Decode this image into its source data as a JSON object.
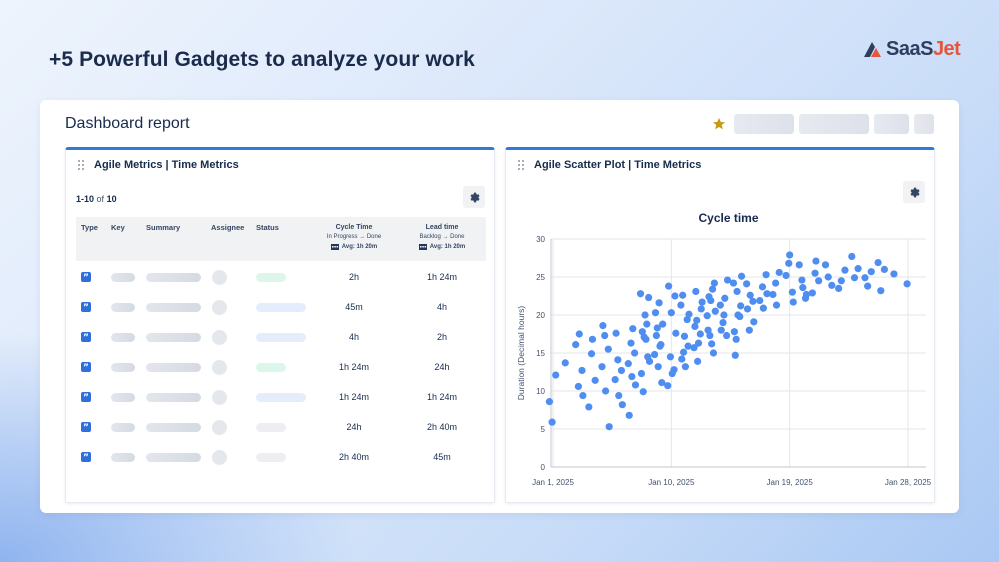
{
  "headline": "+5 Powerful Gadgets to analyze your work",
  "logo": {
    "part1": "SaaS",
    "part2": "Jet",
    "colors": {
      "dark": "#2d3e5f",
      "accent": "#e5563b"
    }
  },
  "dashboard": {
    "title": "Dashboard report"
  },
  "left_panel": {
    "title": "Agile Metrics | Time Metrics",
    "range": "1-10",
    "of_word": "of",
    "total": "10",
    "columns": {
      "type": "Type",
      "key": "Key",
      "summary": "Summary",
      "assignee": "Assignee",
      "status": "Status",
      "cycle": {
        "title": "Cycle Time",
        "sub": "In Progress → Done",
        "avg": "Avg: 1h 20m"
      },
      "lead": {
        "title": "Lead time",
        "sub": "Backlog → Done",
        "avg": "Avg: 1h 20m"
      }
    },
    "rows": [
      {
        "type_icon": "quote-icon",
        "status_color": "#dcf7ea",
        "cycle": "2h",
        "lead": "1h 24m"
      },
      {
        "type_icon": "quote-icon",
        "status_color": "#e3edfb",
        "cycle": "45m",
        "lead": "4h"
      },
      {
        "type_icon": "quote-icon",
        "status_color": "#e3edfb",
        "cycle": "4h",
        "lead": "2h"
      },
      {
        "type_icon": "quote-icon",
        "status_color": "#dcf7ea",
        "cycle": "1h 24m",
        "lead": "24h"
      },
      {
        "type_icon": "quote-icon",
        "status_color": "#e3edfb",
        "cycle": "1h 24m",
        "lead": "1h 24m"
      },
      {
        "type_icon": "quote-icon",
        "status_color": "#eceef2",
        "cycle": "24h",
        "lead": "2h 40m"
      },
      {
        "type_icon": "quote-icon",
        "status_color": "#eceef2",
        "cycle": "2h 40m",
        "lead": "45m"
      }
    ]
  },
  "right_panel": {
    "title": "Agile Scatter Plot | Time Metrics"
  },
  "chart_data": {
    "type": "scatter",
    "title": "Cycle time",
    "xlabel": "",
    "ylabel": "Duration (Decimal hours)",
    "x_ticks": [
      "Jan 1, 2025",
      "Jan 10, 2025",
      "Jan 19, 2025",
      "Jan 28, 2025"
    ],
    "x_range": [
      "2025-01-01",
      "2025-01-28"
    ],
    "y_ticks": [
      0,
      5,
      10,
      15,
      20,
      25,
      30
    ],
    "ylim": [
      0,
      30
    ],
    "grid": true,
    "point_color": "#4f8ef0",
    "points": [
      [
        "2025-01-01",
        5.9
      ],
      [
        "2025-01-01",
        12.1
      ],
      [
        "2025-01-01",
        8.6
      ],
      [
        "2025-01-02",
        13.7
      ],
      [
        "2025-01-03",
        10.6
      ],
      [
        "2025-01-03",
        12.7
      ],
      [
        "2025-01-03",
        16.1
      ],
      [
        "2025-01-03",
        17.5
      ],
      [
        "2025-01-03",
        9.4
      ],
      [
        "2025-01-04",
        14.9
      ],
      [
        "2025-01-04",
        11.4
      ],
      [
        "2025-01-04",
        7.9
      ],
      [
        "2025-01-04",
        16.8
      ],
      [
        "2025-01-05",
        17.3
      ],
      [
        "2025-01-05",
        15.5
      ],
      [
        "2025-01-05",
        13.2
      ],
      [
        "2025-01-05",
        10.0
      ],
      [
        "2025-01-05",
        5.3
      ],
      [
        "2025-01-05",
        18.6
      ],
      [
        "2025-01-06",
        14.1
      ],
      [
        "2025-01-06",
        12.7
      ],
      [
        "2025-01-06",
        11.5
      ],
      [
        "2025-01-06",
        9.4
      ],
      [
        "2025-01-06",
        8.2
      ],
      [
        "2025-01-06",
        17.6
      ],
      [
        "2025-01-07",
        16.3
      ],
      [
        "2025-01-07",
        15.0
      ],
      [
        "2025-01-07",
        13.6
      ],
      [
        "2025-01-07",
        11.9
      ],
      [
        "2025-01-07",
        10.8
      ],
      [
        "2025-01-07",
        6.8
      ],
      [
        "2025-01-07",
        18.2
      ],
      [
        "2025-01-08",
        17.1
      ],
      [
        "2025-01-08",
        14.5
      ],
      [
        "2025-01-08",
        12.3
      ],
      [
        "2025-01-08",
        20.0
      ],
      [
        "2025-01-08",
        22.3
      ],
      [
        "2025-01-08",
        17.8
      ],
      [
        "2025-01-08",
        16.8
      ],
      [
        "2025-01-08",
        13.9
      ],
      [
        "2025-01-08",
        9.9
      ],
      [
        "2025-01-08",
        18.8
      ],
      [
        "2025-01-08",
        22.8
      ],
      [
        "2025-01-09",
        18.3
      ],
      [
        "2025-01-09",
        16.1
      ],
      [
        "2025-01-09",
        14.8
      ],
      [
        "2025-01-09",
        13.2
      ],
      [
        "2025-01-09",
        11.1
      ],
      [
        "2025-01-09",
        20.3
      ],
      [
        "2025-01-09",
        21.6
      ],
      [
        "2025-01-09",
        18.8
      ],
      [
        "2025-01-09",
        17.3
      ],
      [
        "2025-01-09",
        15.9
      ],
      [
        "2025-01-10",
        14.5
      ],
      [
        "2025-01-10",
        12.8
      ],
      [
        "2025-01-10",
        10.7
      ],
      [
        "2025-01-10",
        20.3
      ],
      [
        "2025-01-10",
        22.5
      ],
      [
        "2025-01-10",
        23.8
      ],
      [
        "2025-01-10",
        12.3
      ],
      [
        "2025-01-10",
        17.6
      ],
      [
        "2025-01-11",
        15.1
      ],
      [
        "2025-01-11",
        19.4
      ],
      [
        "2025-01-11",
        21.3
      ],
      [
        "2025-01-11",
        17.2
      ],
      [
        "2025-01-11",
        15.9
      ],
      [
        "2025-01-11",
        14.2
      ],
      [
        "2025-01-11",
        13.2
      ],
      [
        "2025-01-11",
        20.1
      ],
      [
        "2025-01-11",
        22.6
      ],
      [
        "2025-01-12",
        19.3
      ],
      [
        "2025-01-12",
        17.5
      ],
      [
        "2025-01-12",
        15.7
      ],
      [
        "2025-01-12",
        13.9
      ],
      [
        "2025-01-12",
        20.8
      ],
      [
        "2025-01-12",
        18.5
      ],
      [
        "2025-01-12",
        16.3
      ],
      [
        "2025-01-12",
        21.7
      ],
      [
        "2025-01-12",
        23.1
      ],
      [
        "2025-01-13",
        17.3
      ],
      [
        "2025-01-13",
        15.0
      ],
      [
        "2025-01-13",
        19.9
      ],
      [
        "2025-01-13",
        21.9
      ],
      [
        "2025-01-13",
        24.2
      ],
      [
        "2025-01-13",
        18.0
      ],
      [
        "2025-01-13",
        16.2
      ],
      [
        "2025-01-13",
        20.5
      ],
      [
        "2025-01-13",
        22.4
      ],
      [
        "2025-01-13",
        23.4
      ],
      [
        "2025-01-14",
        19.0
      ],
      [
        "2025-01-14",
        17.3
      ],
      [
        "2025-01-14",
        21.3
      ],
      [
        "2025-01-14",
        20.0
      ],
      [
        "2025-01-14",
        24.6
      ],
      [
        "2025-01-14",
        18.0
      ],
      [
        "2025-01-14",
        22.2
      ],
      [
        "2025-01-15",
        16.8
      ],
      [
        "2025-01-15",
        19.8
      ],
      [
        "2025-01-15",
        24.2
      ],
      [
        "2025-01-15",
        23.1
      ],
      [
        "2025-01-15",
        21.2
      ],
      [
        "2025-01-15",
        17.8
      ],
      [
        "2025-01-15",
        20.0
      ],
      [
        "2025-01-15",
        25.1
      ],
      [
        "2025-01-15",
        14.7
      ],
      [
        "2025-01-16",
        18.0
      ],
      [
        "2025-01-16",
        21.8
      ],
      [
        "2025-01-16",
        24.1
      ],
      [
        "2025-01-16",
        22.6
      ],
      [
        "2025-01-16",
        19.1
      ],
      [
        "2025-01-16",
        20.8
      ],
      [
        "2025-01-17",
        23.7
      ],
      [
        "2025-01-17",
        25.3
      ],
      [
        "2025-01-17",
        21.9
      ],
      [
        "2025-01-17",
        20.9
      ],
      [
        "2025-01-17",
        22.8
      ],
      [
        "2025-01-18",
        24.2
      ],
      [
        "2025-01-18",
        25.6
      ],
      [
        "2025-01-18",
        22.7
      ],
      [
        "2025-01-18",
        21.3
      ],
      [
        "2025-01-19",
        26.8
      ],
      [
        "2025-01-19",
        23.0
      ],
      [
        "2025-01-19",
        25.2
      ],
      [
        "2025-01-19",
        27.9
      ],
      [
        "2025-01-19",
        21.7
      ],
      [
        "2025-01-20",
        24.6
      ],
      [
        "2025-01-20",
        22.2
      ],
      [
        "2025-01-20",
        26.6
      ],
      [
        "2025-01-20",
        23.6
      ],
      [
        "2025-01-20",
        22.7
      ],
      [
        "2025-01-21",
        25.5
      ],
      [
        "2025-01-21",
        24.5
      ],
      [
        "2025-01-21",
        22.9
      ],
      [
        "2025-01-21",
        27.1
      ],
      [
        "2025-01-22",
        25.0
      ],
      [
        "2025-01-22",
        23.9
      ],
      [
        "2025-01-22",
        26.6
      ],
      [
        "2025-01-23",
        24.5
      ],
      [
        "2025-01-23",
        25.9
      ],
      [
        "2025-01-23",
        23.5
      ],
      [
        "2025-01-24",
        24.9
      ],
      [
        "2025-01-24",
        26.1
      ],
      [
        "2025-01-24",
        27.7
      ],
      [
        "2025-01-25",
        23.8
      ],
      [
        "2025-01-25",
        25.7
      ],
      [
        "2025-01-25",
        24.9
      ],
      [
        "2025-01-26",
        23.2
      ],
      [
        "2025-01-26",
        26.0
      ],
      [
        "2025-01-26",
        26.9
      ],
      [
        "2025-01-27",
        25.4
      ],
      [
        "2025-01-28",
        24.1
      ]
    ]
  }
}
